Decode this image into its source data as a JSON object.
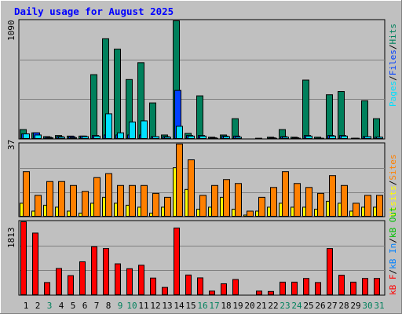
{
  "title": "Daily usage for August 2025",
  "colors": {
    "background": "#c0c0c0",
    "frame_light": "#ffffff",
    "frame_dark": "#808080",
    "title": "#0000ff",
    "hits": "#00805c",
    "files": "#0040ff",
    "pages": "#00e0ff",
    "visits": "#ffff00",
    "sites": "#ff8000",
    "kbytes": "#ff0000",
    "kb_in": "#0080ff",
    "kb_out": "#00c000",
    "weekend_day": "#00805c",
    "weekday": "#000000"
  },
  "chart_data": [
    {
      "type": "bar",
      "panel": "hits-files-pages",
      "ymax_label": "1090",
      "ylim": [
        0,
        1090
      ],
      "legend": [
        "Pages",
        "/",
        "Files",
        "/",
        "Hits"
      ],
      "x": [
        1,
        2,
        3,
        4,
        5,
        6,
        7,
        8,
        9,
        10,
        11,
        12,
        13,
        14,
        15,
        16,
        17,
        18,
        19,
        20,
        21,
        22,
        23,
        24,
        25,
        26,
        27,
        28,
        29,
        30,
        31
      ],
      "series": [
        {
          "name": "Hits",
          "values": [
            90,
            60,
            25,
            35,
            30,
            30,
            595,
            925,
            830,
            550,
            705,
            335,
            40,
            1090,
            55,
            400,
            20,
            40,
            190,
            5,
            10,
            20,
            90,
            20,
            545,
            20,
            410,
            440,
            5,
            355,
            190
          ]
        },
        {
          "name": "Files",
          "values": [
            50,
            60,
            20,
            25,
            25,
            30,
            35,
            40,
            40,
            40,
            40,
            25,
            25,
            450,
            35,
            35,
            15,
            30,
            30,
            2,
            5,
            15,
            25,
            15,
            35,
            10,
            35,
            35,
            10,
            25,
            20
          ]
        },
        {
          "name": "Pages",
          "values": [
            50,
            40,
            15,
            20,
            15,
            25,
            30,
            235,
            60,
            160,
            170,
            25,
            20,
            120,
            30,
            30,
            10,
            25,
            20,
            2,
            5,
            10,
            20,
            10,
            30,
            10,
            30,
            30,
            10,
            25,
            20
          ]
        }
      ]
    },
    {
      "type": "bar",
      "panel": "visits-sites",
      "ymax_label": "37",
      "ylim": [
        0,
        37
      ],
      "legend": [
        "Visits",
        "/",
        "Sites"
      ],
      "x": [
        1,
        2,
        3,
        4,
        5,
        6,
        7,
        8,
        9,
        10,
        11,
        12,
        13,
        14,
        15,
        16,
        17,
        18,
        19,
        20,
        21,
        22,
        23,
        24,
        25,
        26,
        27,
        28,
        29,
        30,
        31
      ],
      "series": [
        {
          "name": "Visits",
          "values": [
            7,
            3,
            6,
            5,
            3,
            2,
            7,
            10,
            7,
            6,
            5,
            2,
            5,
            25,
            14,
            4,
            5,
            10,
            4,
            1,
            3,
            5,
            7,
            5,
            5,
            4,
            8,
            7,
            3,
            5,
            5
          ]
        },
        {
          "name": "Sites",
          "values": [
            23,
            11,
            18,
            18,
            16,
            13,
            20,
            22,
            16,
            16,
            16,
            12,
            10,
            37,
            29,
            11,
            16,
            19,
            17,
            3,
            10,
            15,
            23,
            17,
            15,
            12,
            21,
            16,
            7,
            11,
            11
          ]
        }
      ]
    },
    {
      "type": "bar",
      "panel": "kbytes",
      "ymax_label": "1813",
      "ylim": [
        0,
        1813
      ],
      "legend": [
        "kB F",
        "/",
        "kB In",
        "/",
        "kB Out"
      ],
      "x": [
        1,
        2,
        3,
        4,
        5,
        6,
        7,
        8,
        9,
        10,
        11,
        12,
        13,
        14,
        15,
        16,
        17,
        18,
        19,
        20,
        21,
        22,
        23,
        24,
        25,
        26,
        27,
        28,
        29,
        30,
        31
      ],
      "series": [
        {
          "name": "KBytes",
          "values": [
            1813,
            1535,
            320,
            665,
            490,
            830,
            1200,
            1155,
            780,
            660,
            745,
            430,
            200,
            1660,
            505,
            435,
            110,
            290,
            395,
            10,
            110,
            100,
            330,
            330,
            420,
            320,
            1155,
            500,
            330,
            420,
            420
          ]
        }
      ]
    }
  ],
  "x_axis": {
    "labels": [
      "1",
      "2",
      "3",
      "4",
      "5",
      "6",
      "7",
      "8",
      "9",
      "10",
      "11",
      "12",
      "13",
      "14",
      "15",
      "16",
      "17",
      "18",
      "19",
      "20",
      "21",
      "22",
      "23",
      "24",
      "25",
      "26",
      "27",
      "28",
      "29",
      "30",
      "31"
    ],
    "weekend": [
      3,
      9,
      10,
      16,
      17,
      23,
      24,
      30,
      31
    ]
  }
}
